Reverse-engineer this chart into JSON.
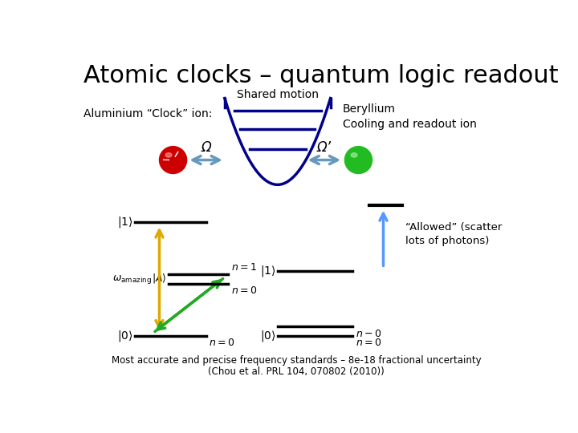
{
  "title": "Atomic clocks – quantum logic readout",
  "title_fontsize": 22,
  "bg_color": "#ffffff",
  "shared_motion_text": "Shared motion",
  "al_label": "Aluminium “Clock” ion:",
  "be_label": "Beryllium\nCooling and readout ion",
  "omega_label": "Ω",
  "omega_prime_label": "Ω’",
  "allowed_label": "“Allowed” (scatter\nlots of photons)",
  "footer1": "Most accurate and precise frequency standards – 8e-18 fractional uncertainty",
  "footer2": "(Chou et al. PRL 104, 070802 (2010))",
  "trap_color": "#00008B",
  "level_color": "#00008B",
  "arrow_color": "#6699BB",
  "left_ball_color": "#CC0000",
  "right_ball_color": "#22BB22",
  "yellow_arrow": "#DDAA00",
  "green_arrow": "#22AA22",
  "blue_arrow": "#5599FF"
}
